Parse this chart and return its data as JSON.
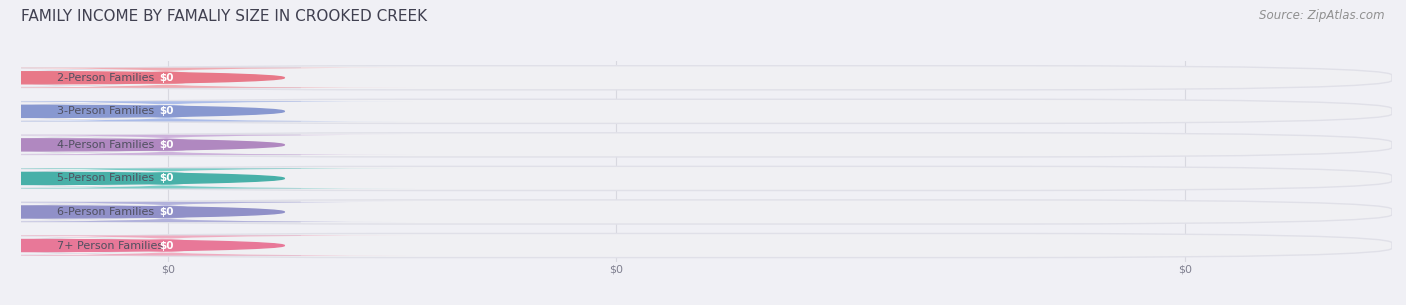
{
  "title": "FAMILY INCOME BY FAMALIY SIZE IN CROOKED CREEK",
  "source": "Source: ZipAtlas.com",
  "categories": [
    "2-Person Families",
    "3-Person Families",
    "4-Person Families",
    "5-Person Families",
    "6-Person Families",
    "7+ Person Families"
  ],
  "values": [
    0,
    0,
    0,
    0,
    0,
    0
  ],
  "bar_colors": [
    "#f0a0a8",
    "#a0b4e8",
    "#c8a8d8",
    "#68c8c0",
    "#a8a8d8",
    "#f0a0b8"
  ],
  "dot_colors": [
    "#e87888",
    "#8898d0",
    "#b088c0",
    "#48b0a8",
    "#9090c8",
    "#e87898"
  ],
  "bg_color": "#f0f0f5",
  "bar_track_color": "#f0f0f3",
  "bar_track_border": "#e0e0e8",
  "label_bg_color": "#ffffff",
  "label_text_color": "#505060",
  "value_text_color": "#ffffff",
  "title_color": "#404050",
  "source_color": "#909090",
  "grid_color": "#d8d8e0",
  "tick_label_color": "#808090",
  "title_fontsize": 11,
  "label_fontsize": 8,
  "value_fontsize": 7.5,
  "source_fontsize": 8.5,
  "tick_fontsize": 8
}
